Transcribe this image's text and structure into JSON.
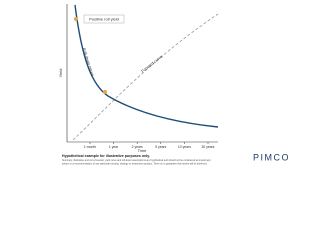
{
  "diagram": {
    "y_axis_label": "Yield",
    "x_axis_label": "Time",
    "callout": "Positive roll yield",
    "curve_labels": [
      "Roll-down return",
      "Forward curve"
    ],
    "x_ticks": [
      "1 month",
      "1 year",
      "2 years",
      "5 years",
      "10 years",
      "30 years"
    ]
  },
  "footer": {
    "note": "Hypothetical example for illustrative purposes only.",
    "disclaimer": [
      "Summary, illustrative and not a forecast; yield curve and roll-down assumptions are hypothetical and should not be considered as investment",
      "advice or a recommendation of any particular security, strategy or investment product. There is no guarantee that results will be achieved."
    ],
    "logo": "PIMCO"
  }
}
